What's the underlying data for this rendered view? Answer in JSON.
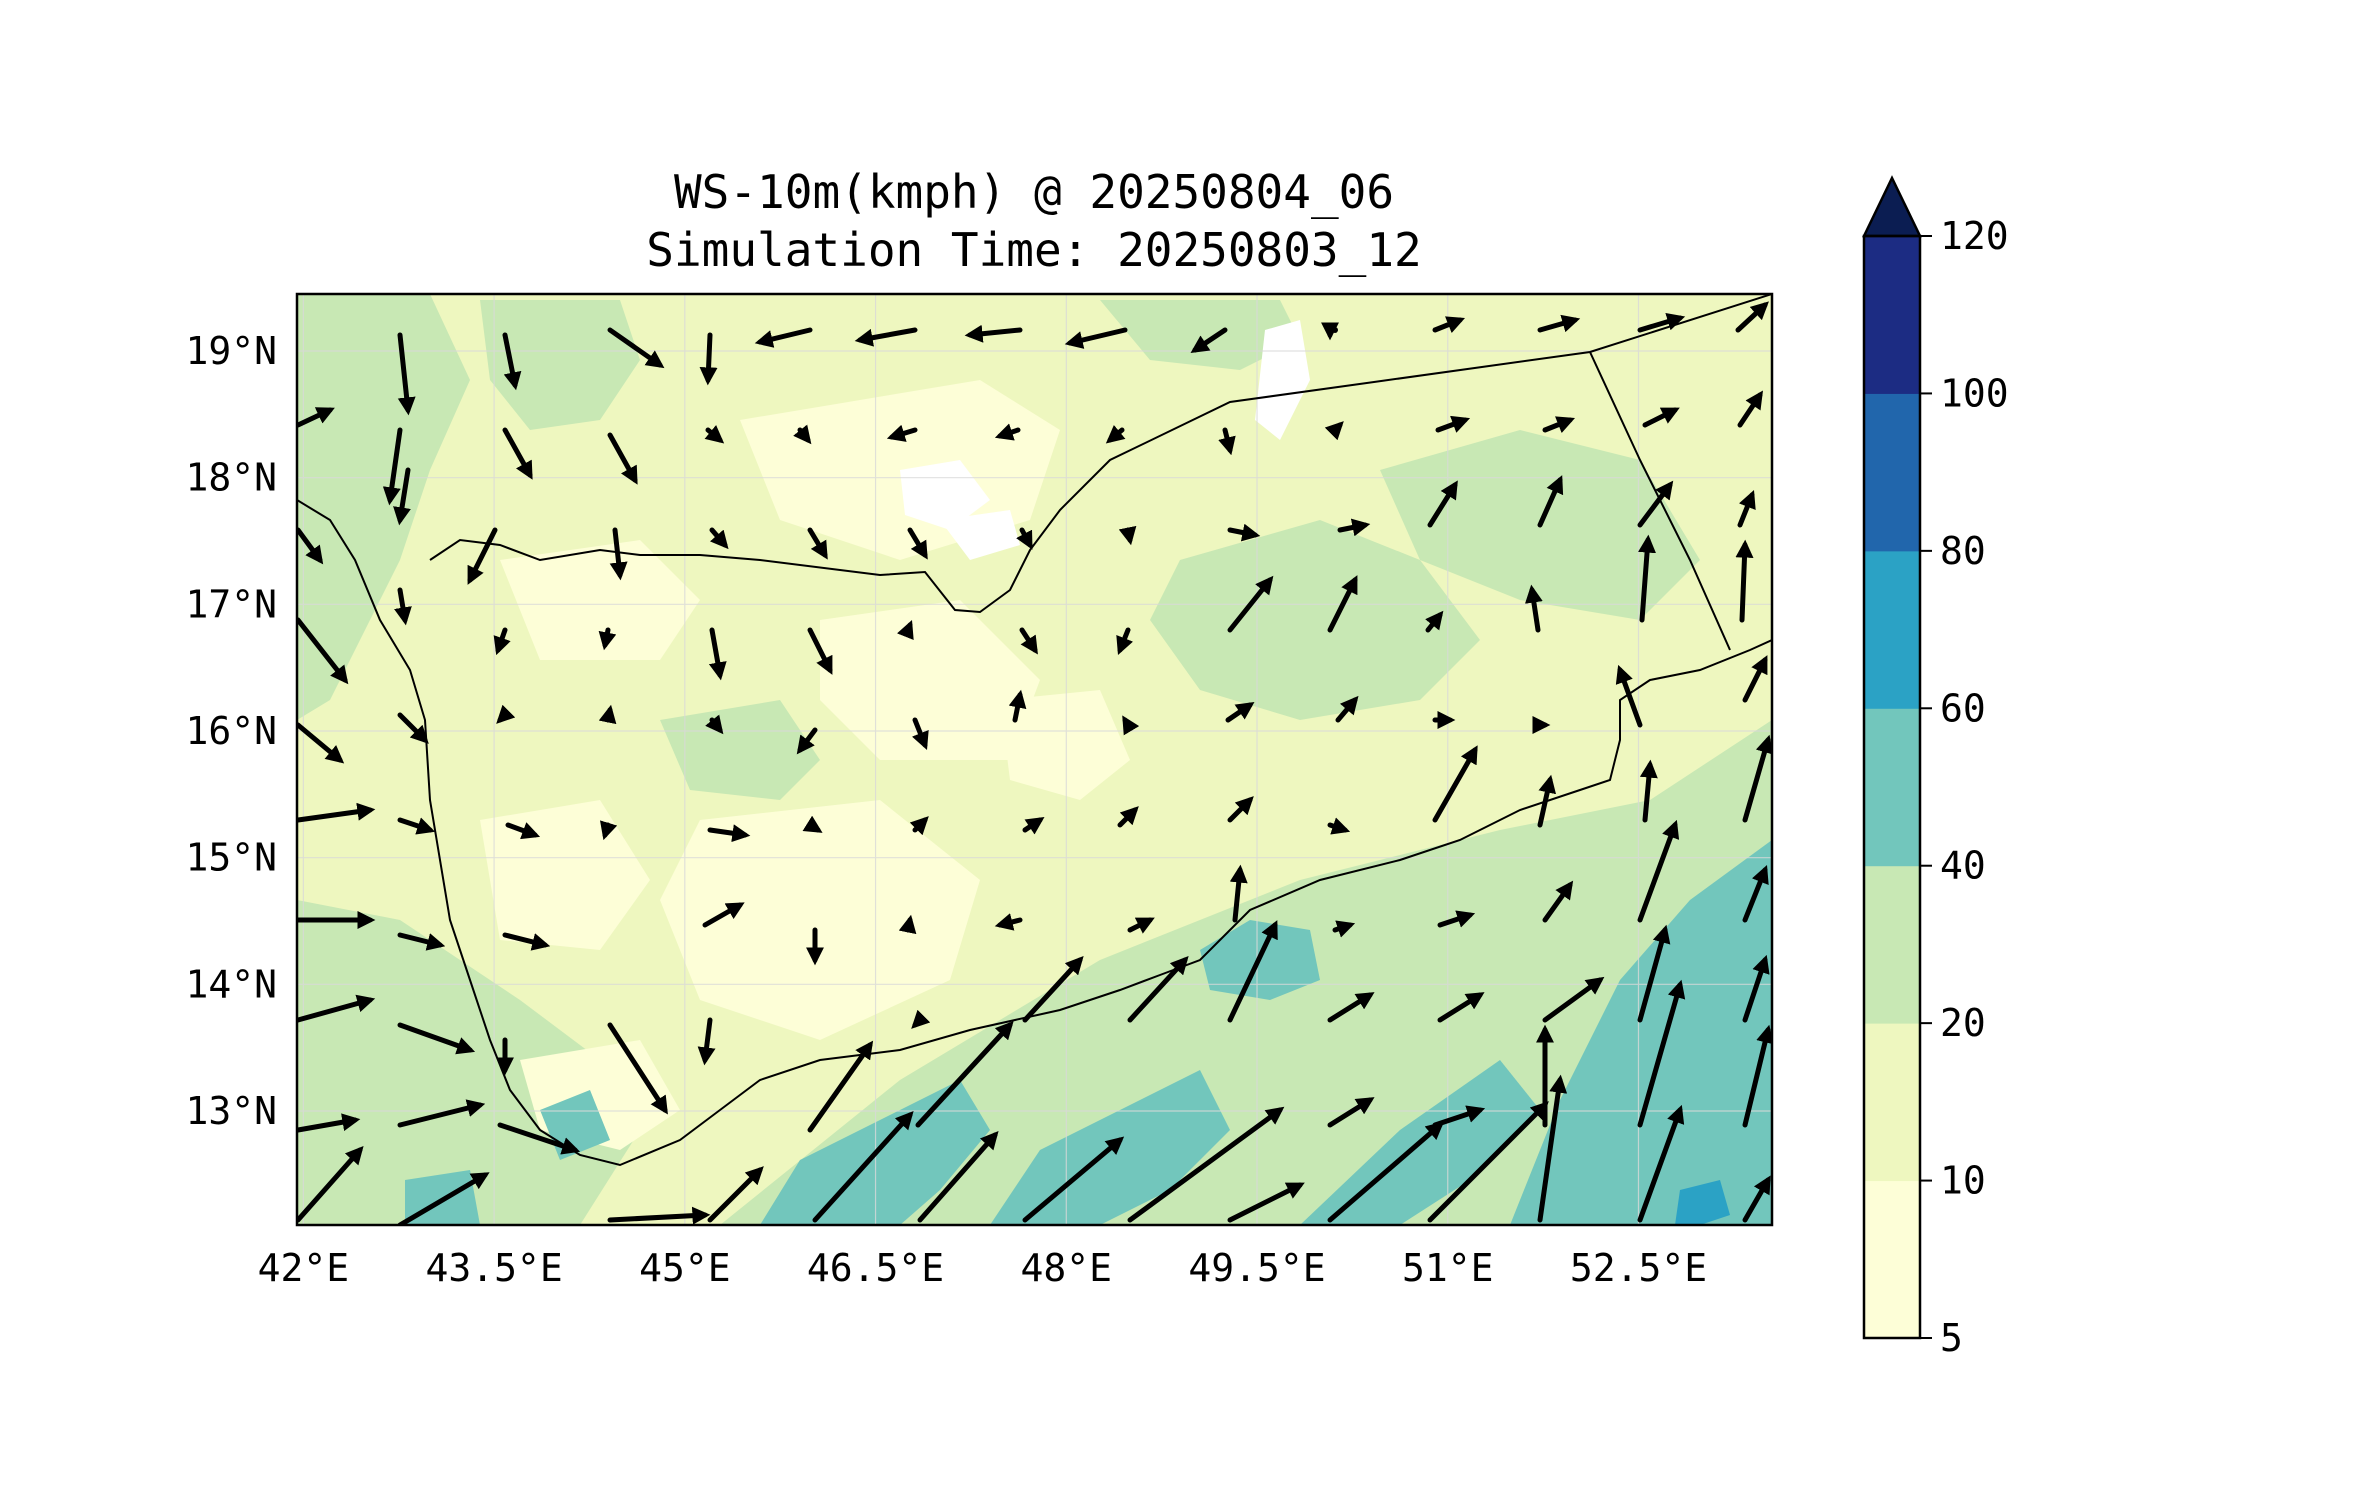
{
  "title_line1": "WS-10m(kmph) @ 20250804_06",
  "title_line2": "Simulation Time: 20250803_12",
  "map": {
    "lon_range": [
      41.95,
      53.55
    ],
    "lat_range": [
      12.1,
      19.45
    ],
    "lon_ticks": [
      42,
      43.5,
      45,
      46.5,
      48,
      49.5,
      51,
      52.5
    ],
    "lat_ticks": [
      13,
      14,
      15,
      16,
      17,
      18,
      19
    ],
    "lon_tick_labels": [
      "42°E",
      "43.5°E",
      "45°E",
      "46.5°E",
      "48°E",
      "49.5°E",
      "51°E",
      "52.5°E"
    ],
    "lat_tick_labels": [
      "13°N",
      "14°N",
      "15°N",
      "16°N",
      "17°N",
      "18°N",
      "19°N"
    ],
    "grid": true,
    "field": "10 m wind speed (kmph) with wind direction arrows",
    "colors": {
      "background_fill": "#eef7bf",
      "band_5_10": "#fdfed7",
      "band_10_20": "#eef7bf",
      "band_20_40": "#c8e8b4",
      "band_40_60": "#72c6bc",
      "band_60_80": "#2ba2c5",
      "arrow": "#000000",
      "coast": "#000000"
    }
  },
  "colorbar": {
    "levels": [
      "5",
      "10",
      "20",
      "40",
      "60",
      "80",
      "100",
      "120"
    ],
    "colors": [
      "#fdfed7",
      "#eef7bf",
      "#c8e8b4",
      "#72c6bc",
      "#2ba2c5",
      "#2166ac",
      "#1c2c83"
    ],
    "extend_color": "#0b1d52",
    "extend": "max"
  }
}
